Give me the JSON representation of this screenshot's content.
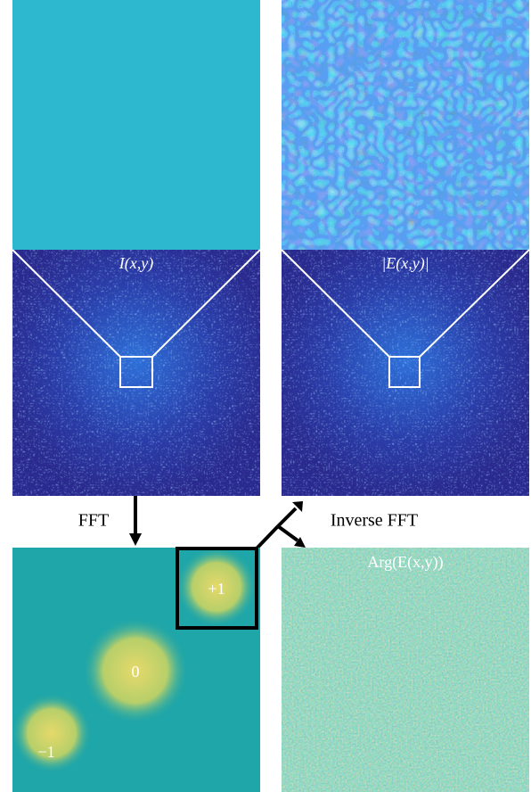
{
  "panels": {
    "intensity_label": "I(x,y)",
    "amplitude_label": "|E(x,y)|",
    "phase_label": "Arg(E(x,y))"
  },
  "arrows": {
    "fft": "FFT",
    "inverse_fft": "Inverse FFT"
  },
  "orders": {
    "plus_one": "+1",
    "zero": "0",
    "minus_one": "−1"
  }
}
